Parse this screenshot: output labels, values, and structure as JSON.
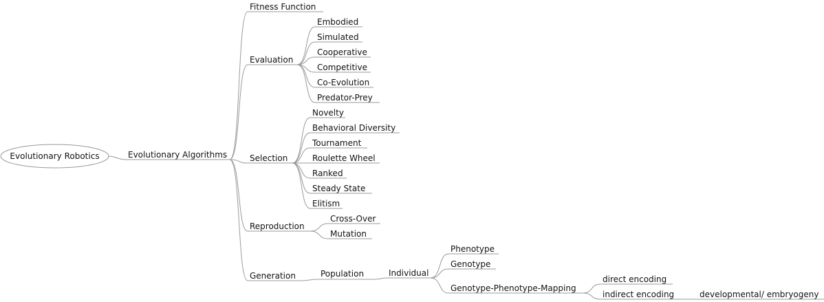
{
  "root": "Evolutionary Robotics",
  "nodes": {
    "ea": "Evolutionary Algorithms",
    "fitness": "Fitness Function",
    "evaluation": "Evaluation",
    "embodied": "Embodied",
    "simulated": "Simulated",
    "cooperative": "Cooperative",
    "competitive": "Competitive",
    "coevolution": "Co-Evolution",
    "predator": "Predator-Prey",
    "selection": "Selection",
    "novelty": "Novelty",
    "behavioral": "Behavioral Diversity",
    "tournament": "Tournament",
    "roulette": "Roulette Wheel",
    "ranked": "Ranked",
    "steady": "Steady State",
    "elitism": "Elitism",
    "reproduction": "Reproduction",
    "crossover": "Cross-Over",
    "mutation": "Mutation",
    "generation": "Generation",
    "population": "Population",
    "individual": "Individual",
    "phenotype": "Phenotype",
    "genotype": "Genotype",
    "gpmap": "Genotype-Phenotype-Mapping",
    "direct": "direct encoding",
    "indirect": "indirect encoding",
    "developmental": "developmental/ embryogeny"
  }
}
